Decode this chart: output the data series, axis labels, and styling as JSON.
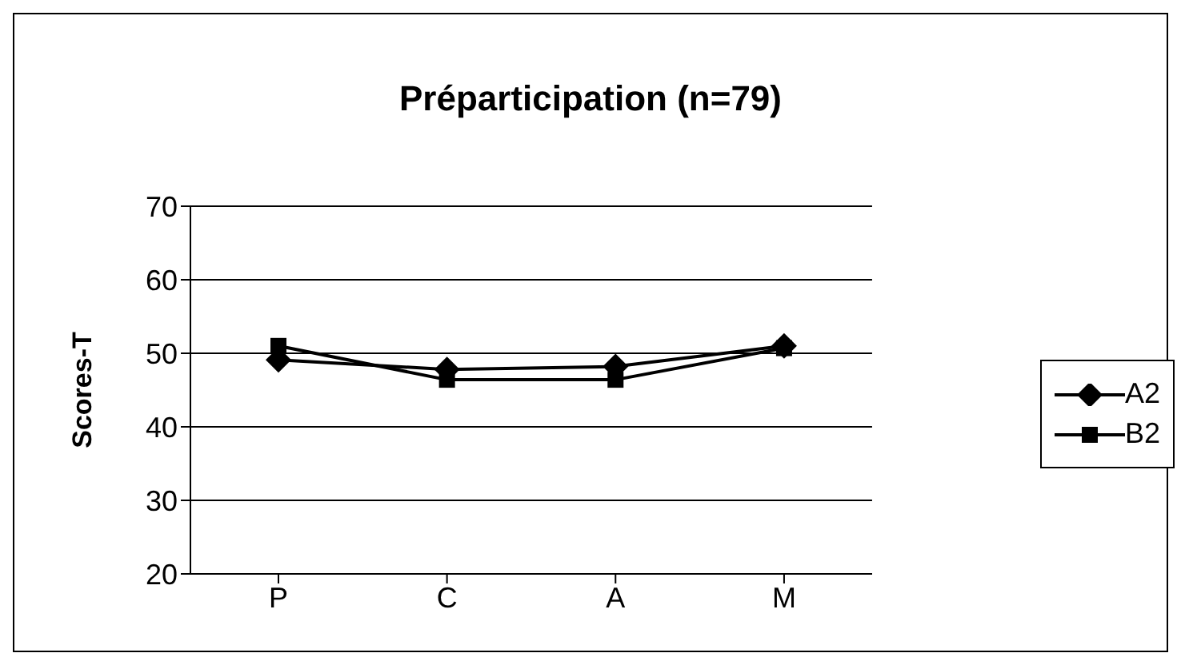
{
  "chart_data": {
    "type": "line",
    "title": "Préparticipation (n=79)",
    "ylabel": "Scores-T",
    "categories": [
      "P",
      "C",
      "A",
      "M"
    ],
    "series": [
      {
        "name": "A2",
        "color": "#000000",
        "marker": "diamond",
        "values": [
          49.1,
          47.8,
          48.2,
          51
        ]
      },
      {
        "name": "B2",
        "color": "#000000",
        "marker": "square",
        "values": [
          51,
          46.4,
          46.4,
          50.7
        ]
      }
    ],
    "ylim": [
      20,
      70
    ],
    "yticks": [
      20,
      30,
      40,
      50,
      60,
      70
    ],
    "grid": "y",
    "legend": "right"
  }
}
